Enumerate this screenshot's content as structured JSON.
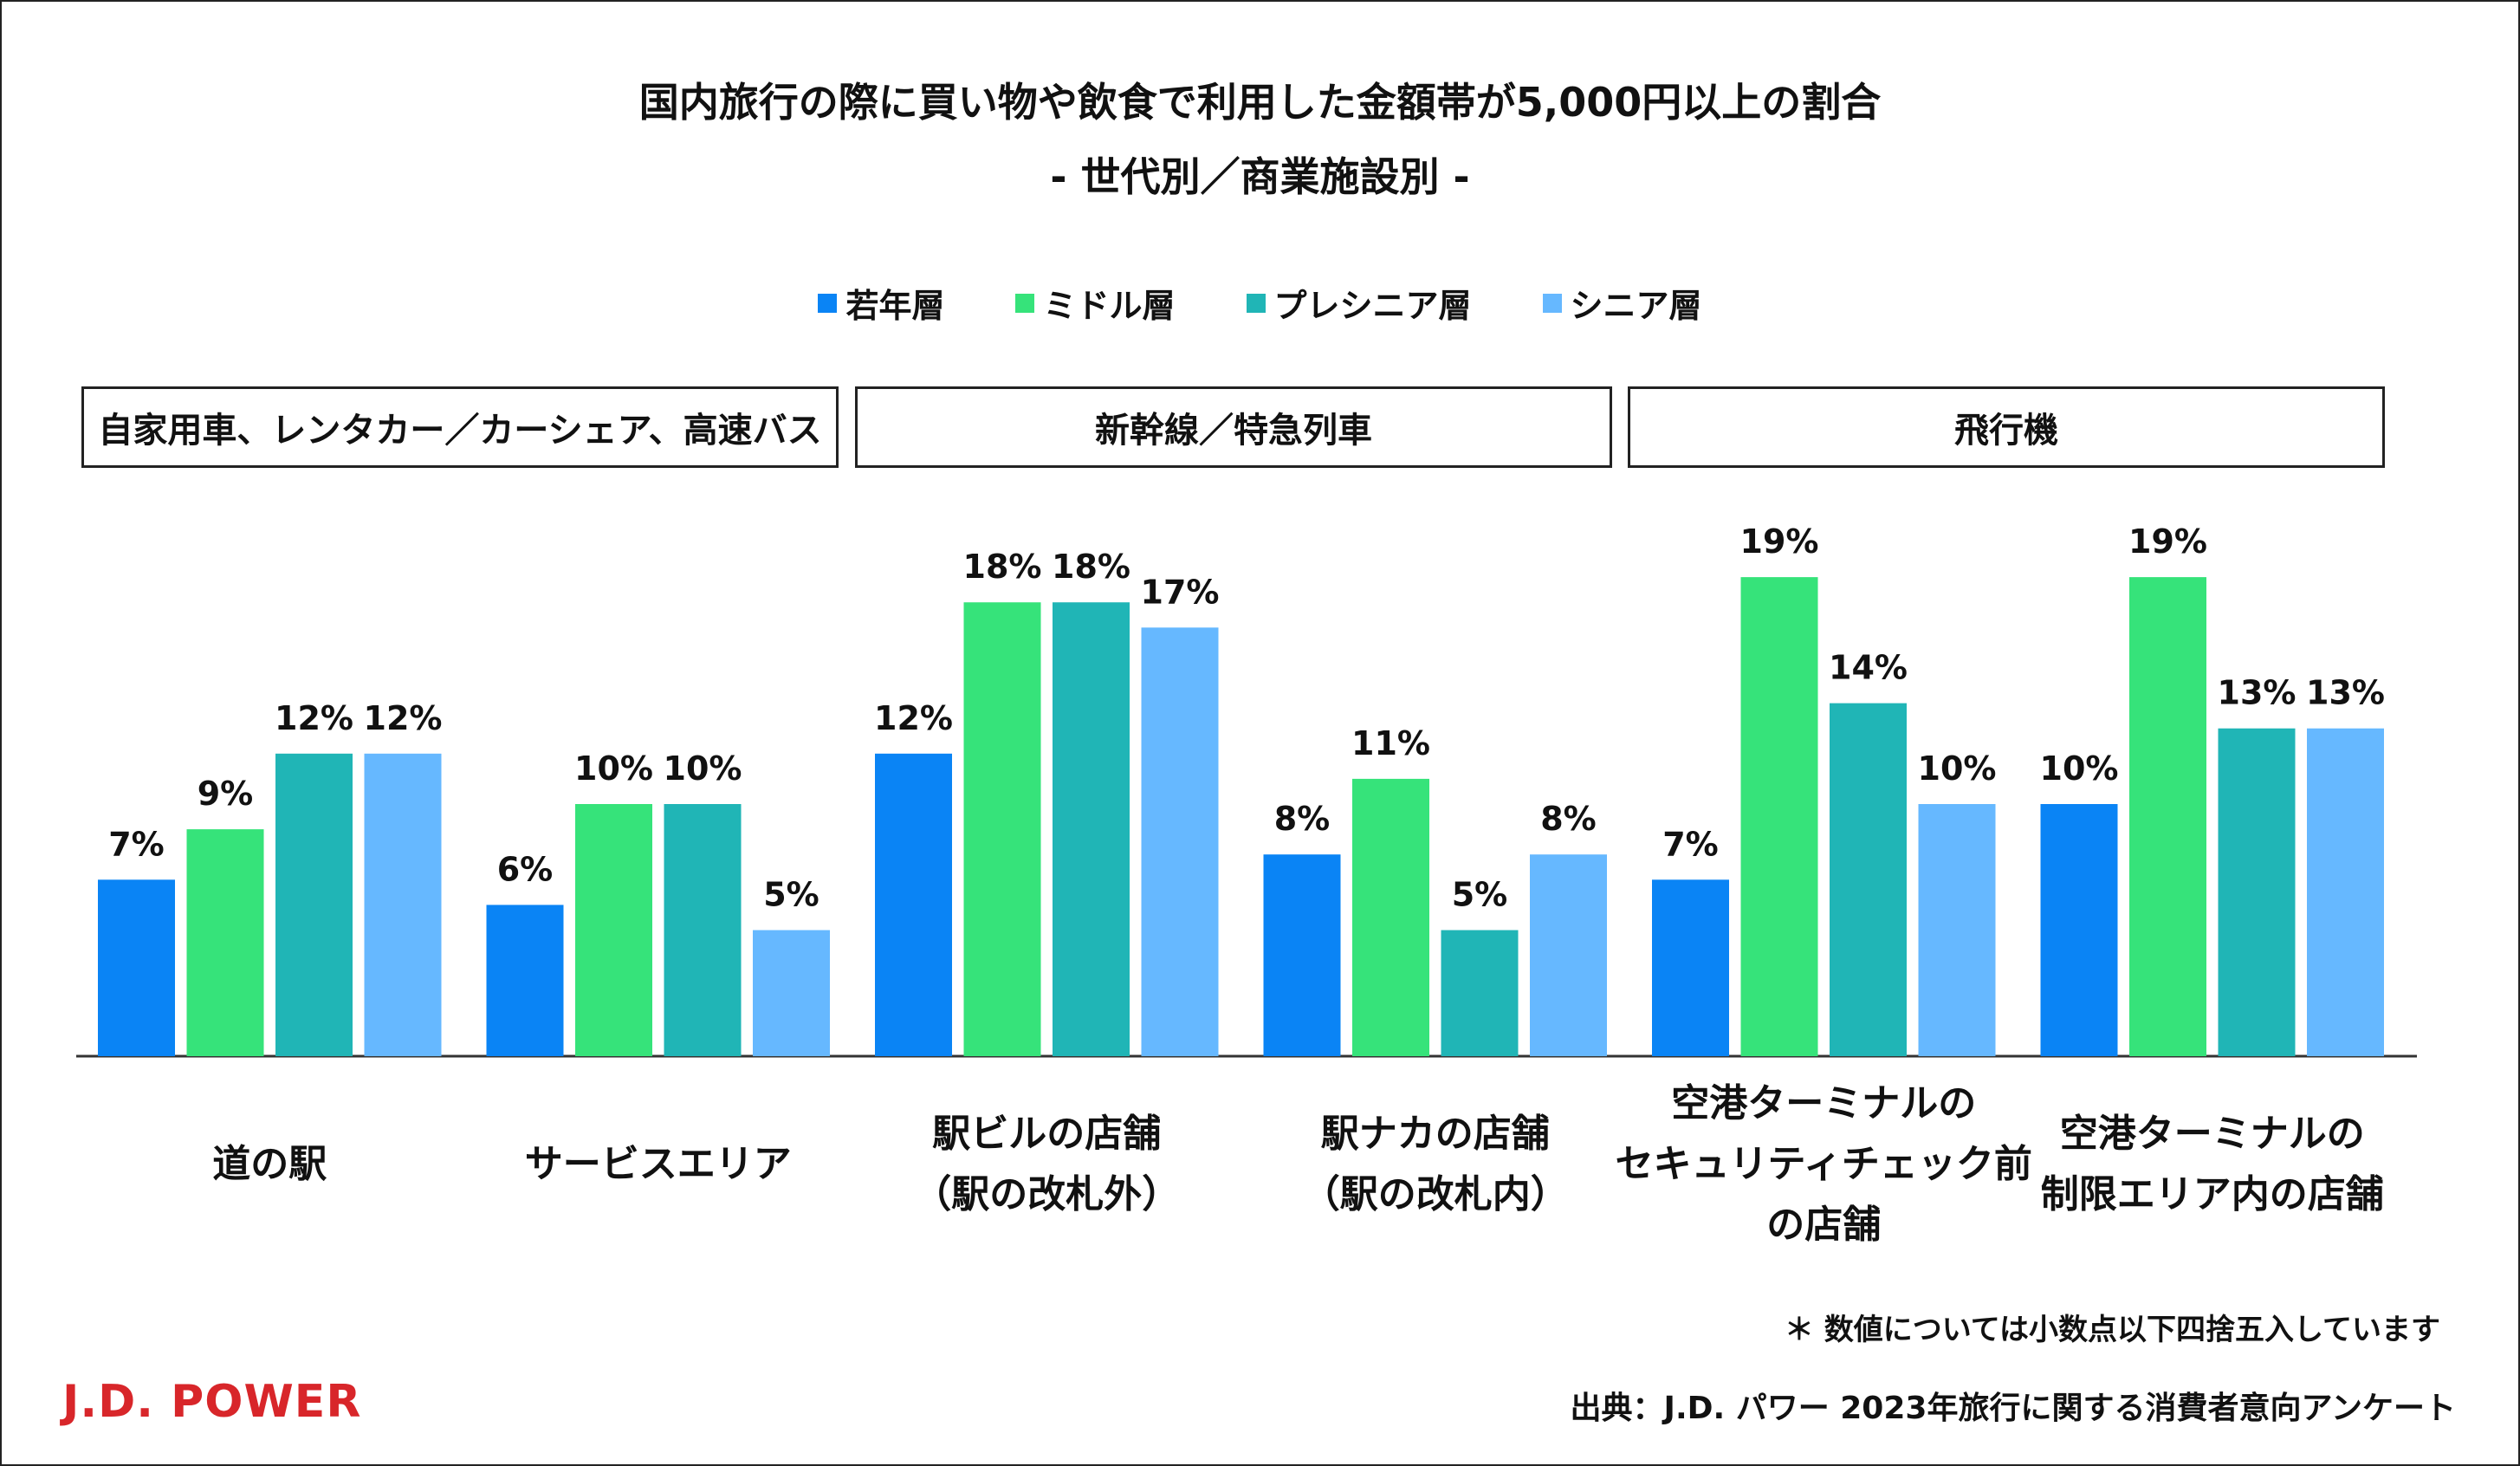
{
  "title": "国内旅行の際に買い物や飲食で利用した金額帯が5,000円以上の割合",
  "subtitle": "- 世代別／商業施設別 -",
  "colors": {
    "young": "#0a84f5",
    "middle": "#36e37a",
    "pre_senior": "#20b5b6",
    "senior": "#66b8ff"
  },
  "legend": [
    "若年層",
    "ミドル層",
    "プレシニア層",
    "シニア層"
  ],
  "groups": [
    "自家用車、レンタカー／カーシェア、高速バス",
    "新幹線／特急列車",
    "飛行機"
  ],
  "footnote": "＊ 数値については小数点以下四捨五入しています",
  "source": "出典：J.D. パワー 2023年旅行に関する消費者意向アンケート",
  "logo_text": "J.D. POWER",
  "chart_data": {
    "type": "bar",
    "title": "国内旅行の際に買い物や飲食で利用した金額帯が5,000円以上の割合",
    "subtitle": "- 世代別／商業施設別 -",
    "unit": "%",
    "categories": [
      [
        "道の駅"
      ],
      [
        "サービスエリア"
      ],
      [
        "駅ビルの店舗",
        "（駅の改札外）"
      ],
      [
        "駅ナカの店舗",
        "（駅の改札内）"
      ],
      [
        "空港ターミナルの",
        "セキュリティチェック前",
        "の店舗"
      ],
      [
        "空港ターミナルの",
        "制限エリア内の店舗"
      ]
    ],
    "series": [
      {
        "name": "若年層",
        "values": [
          7,
          6,
          12,
          8,
          7,
          10
        ]
      },
      {
        "name": "ミドル層",
        "values": [
          9,
          10,
          18,
          11,
          19,
          19
        ]
      },
      {
        "name": "プレシニア層",
        "values": [
          12,
          10,
          18,
          5,
          14,
          13
        ]
      },
      {
        "name": "シニア層",
        "values": [
          12,
          5,
          17,
          8,
          10,
          13
        ]
      }
    ],
    "labels": [
      [
        "7%",
        "6%",
        "12%",
        "8%",
        "7%",
        "10%"
      ],
      [
        "9%",
        "10%",
        "18%",
        "11%",
        "19%",
        "19%"
      ],
      [
        "12%",
        "10%",
        "18%",
        "5%",
        "14%",
        "13%"
      ],
      [
        "12%",
        "5%",
        "17%",
        "8%",
        "10%",
        "13%"
      ]
    ],
    "ylim": [
      0,
      21
    ],
    "xlabel": "",
    "ylabel": "",
    "grid": false,
    "legend_position": "top"
  }
}
